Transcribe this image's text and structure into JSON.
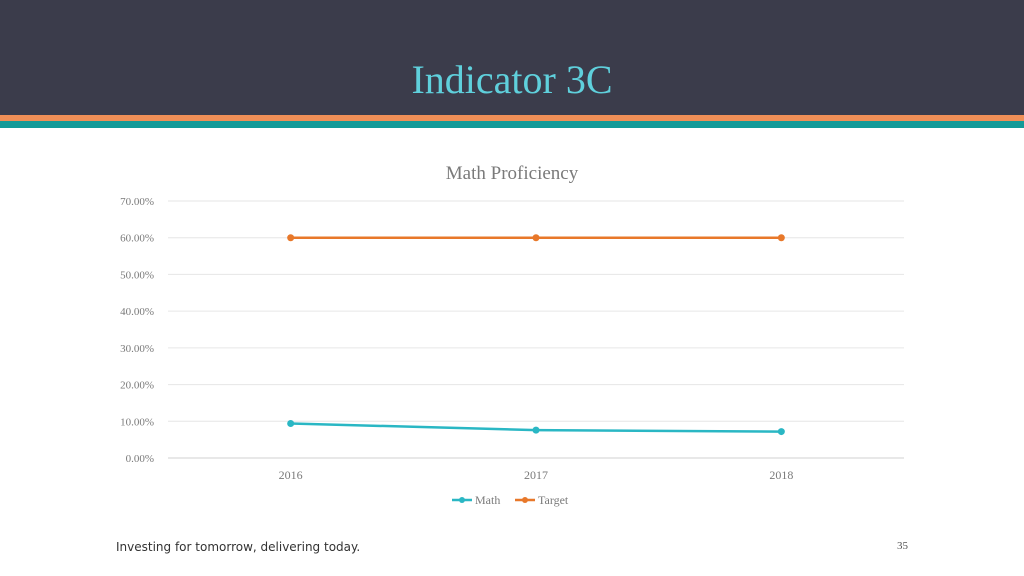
{
  "slide": {
    "title": "Indicator 3C",
    "footer": "Investing for tomorrow, delivering today.",
    "page_number": "35"
  },
  "colors": {
    "header_bg": "#3b3c4b",
    "title": "#5fd0dc",
    "stripe_orange": "#ef8f57",
    "stripe_teal": "#149a98",
    "math_series": "#2ab7c4",
    "target_series": "#e8782a"
  },
  "chart_data": {
    "type": "line",
    "title": "Math Proficiency",
    "xlabel": "",
    "ylabel": "",
    "categories": [
      "2016",
      "2017",
      "2018"
    ],
    "series": [
      {
        "name": "Math",
        "values": [
          0.094,
          0.076,
          0.072
        ],
        "color": "#2ab7c4"
      },
      {
        "name": "Target",
        "values": [
          0.6,
          0.6,
          0.6
        ],
        "color": "#e8782a"
      }
    ],
    "ylim": [
      0,
      0.7
    ],
    "y_ticks": [
      "0.00%",
      "10.00%",
      "20.00%",
      "30.00%",
      "40.00%",
      "50.00%",
      "60.00%",
      "70.00%"
    ],
    "grid": true,
    "legend": "bottom"
  }
}
